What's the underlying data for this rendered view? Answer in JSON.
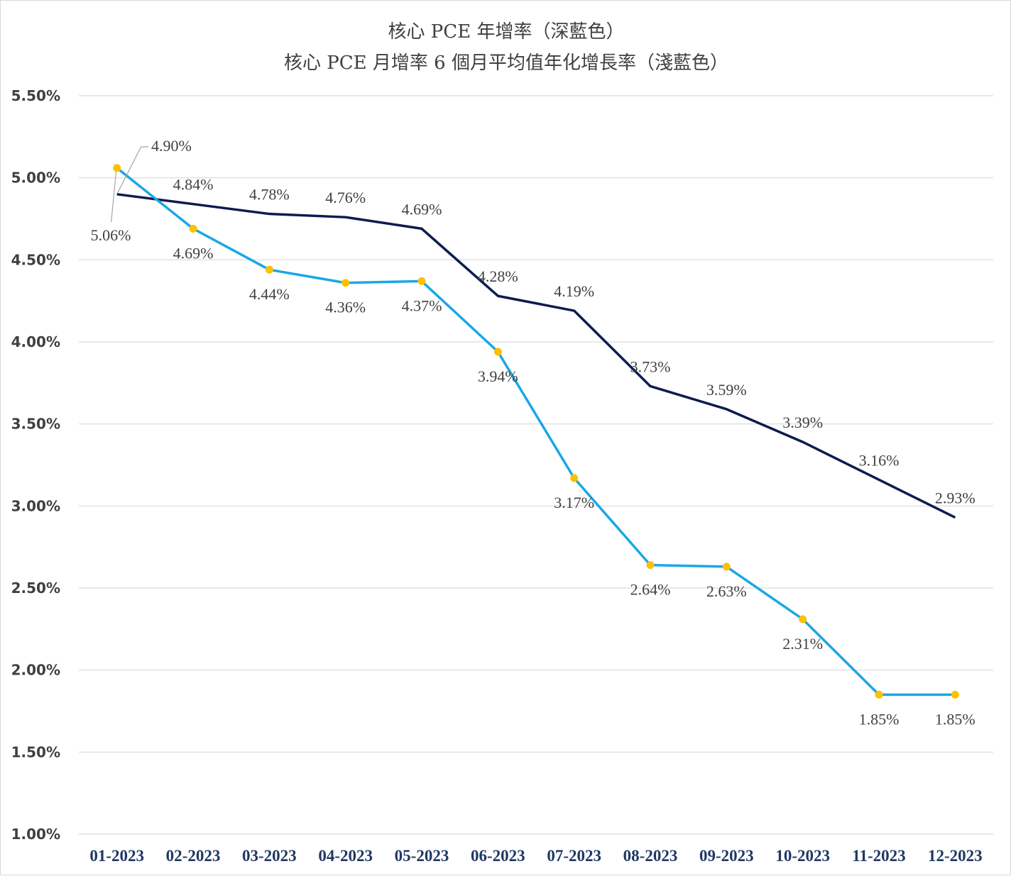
{
  "chart_data": {
    "type": "line",
    "title": [
      "核心 PCE 年增率（深藍色）",
      "核心 PCE 月增率 6 個月平均值年化增長率（淺藍色）"
    ],
    "categories": [
      "01-2023",
      "02-2023",
      "03-2023",
      "04-2023",
      "05-2023",
      "06-2023",
      "07-2023",
      "08-2023",
      "09-2023",
      "10-2023",
      "11-2023",
      "12-2023"
    ],
    "ylim": [
      1.0,
      5.5
    ],
    "yticks": [
      1.0,
      1.5,
      2.0,
      2.5,
      3.0,
      3.5,
      4.0,
      4.5,
      5.0,
      5.5
    ],
    "ytick_labels": [
      "1.00%",
      "1.50%",
      "2.00%",
      "2.50%",
      "3.00%",
      "3.50%",
      "4.00%",
      "4.50%",
      "5.00%",
      "5.50%"
    ],
    "grid": true,
    "series": [
      {
        "name": "核心 PCE 年增率",
        "color": "#0d1b4f",
        "values": [
          4.9,
          4.84,
          4.78,
          4.76,
          4.69,
          4.28,
          4.19,
          3.73,
          3.59,
          3.39,
          3.16,
          2.93
        ],
        "labels": [
          "4.90%",
          "4.84%",
          "4.78%",
          "4.76%",
          "4.69%",
          "4.28%",
          "4.19%",
          "3.73%",
          "3.59%",
          "3.39%",
          "3.16%",
          "2.93%"
        ]
      },
      {
        "name": "核心 PCE 月增率 6 個月平均值年化增長率",
        "color": "#1aa7e6",
        "marker_color": "#ffc000",
        "values": [
          5.06,
          4.69,
          4.44,
          4.36,
          4.37,
          3.94,
          3.17,
          2.64,
          2.63,
          2.31,
          1.85,
          1.85
        ],
        "labels": [
          "5.06%",
          "4.69%",
          "4.44%",
          "4.36%",
          "4.37%",
          "3.94%",
          "3.17%",
          "2.64%",
          "2.63%",
          "2.31%",
          "1.85%",
          "1.85%"
        ]
      }
    ]
  }
}
